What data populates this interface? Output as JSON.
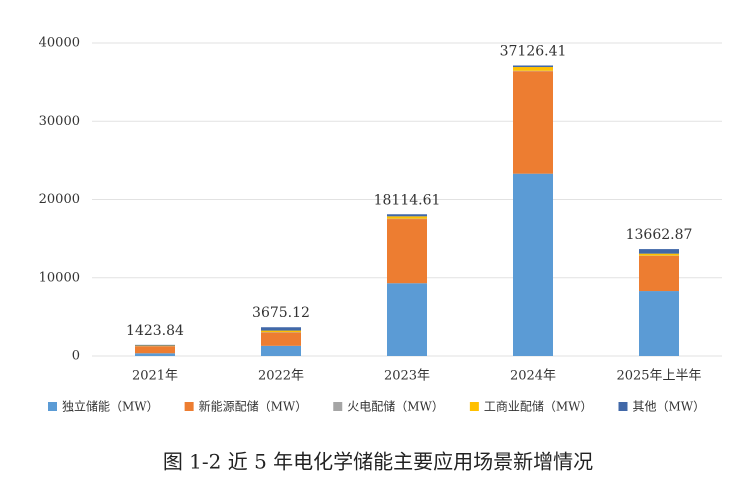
{
  "chart_data": {
    "type": "stacked_bar",
    "categories": [
      "2021年",
      "2022年",
      "2023年",
      "2024年",
      "2025年上半年"
    ],
    "series": [
      {
        "name": "独立储能（MW）",
        "color": "#5b9bd5",
        "values": [
          350,
          1300,
          9300,
          23300,
          8300
        ]
      },
      {
        "name": "新能源配储（MW）",
        "color": "#ed7d31",
        "values": [
          900,
          1700,
          8200,
          13100,
          4500
        ]
      },
      {
        "name": "火电配储（MW）",
        "color": "#a5a5a5",
        "values": [
          20,
          50,
          50,
          50,
          30
        ]
      },
      {
        "name": "工商业配储（MW）",
        "color": "#ffc000",
        "values": [
          60,
          200,
          300,
          480,
          250
        ]
      },
      {
        "name": "其他（MW）",
        "color": "#4168a8",
        "values": [
          94,
          425,
          265,
          196,
          583
        ]
      }
    ],
    "totals": [
      1423.84,
      3675.12,
      18114.61,
      37126.41,
      13662.87
    ],
    "ylim": [
      0,
      40000
    ],
    "yticks": [
      0,
      10000,
      20000,
      30000,
      40000
    ],
    "grid": true,
    "caption": "图 1-2 近 5 年电化学储能主要应用场景新增情况"
  }
}
